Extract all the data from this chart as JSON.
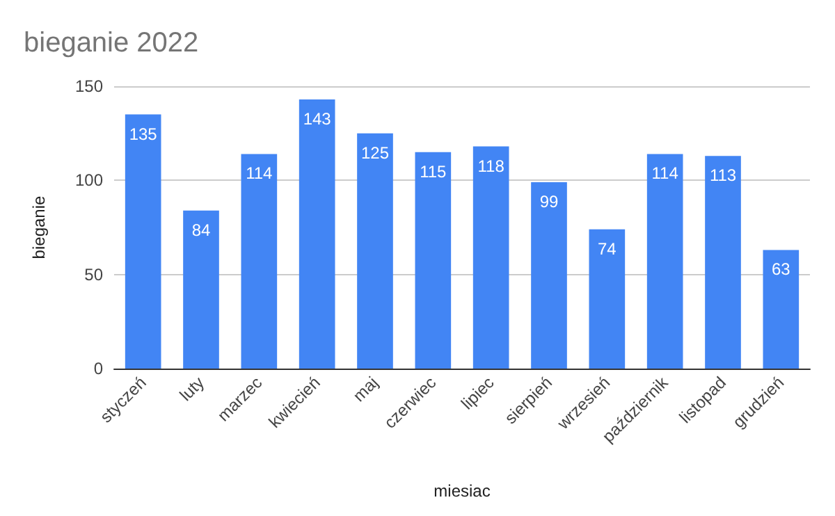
{
  "chart_data": {
    "type": "bar",
    "title": "bieganie 2022",
    "xlabel": "miesiac",
    "ylabel": "bieganie",
    "categories": [
      "styczeń",
      "luty",
      "marzec",
      "kwiecień",
      "maj",
      "czerwiec",
      "lipiec",
      "sierpień",
      "wrzesień",
      "październik",
      "listopad",
      "grudzień"
    ],
    "values": [
      135,
      84,
      114,
      143,
      125,
      115,
      118,
      99,
      74,
      114,
      113,
      63
    ],
    "color": "#4285f4",
    "ylim": [
      0,
      150
    ],
    "yticks": [
      0,
      50,
      100,
      150
    ],
    "grid": "y",
    "data_labels": true
  }
}
